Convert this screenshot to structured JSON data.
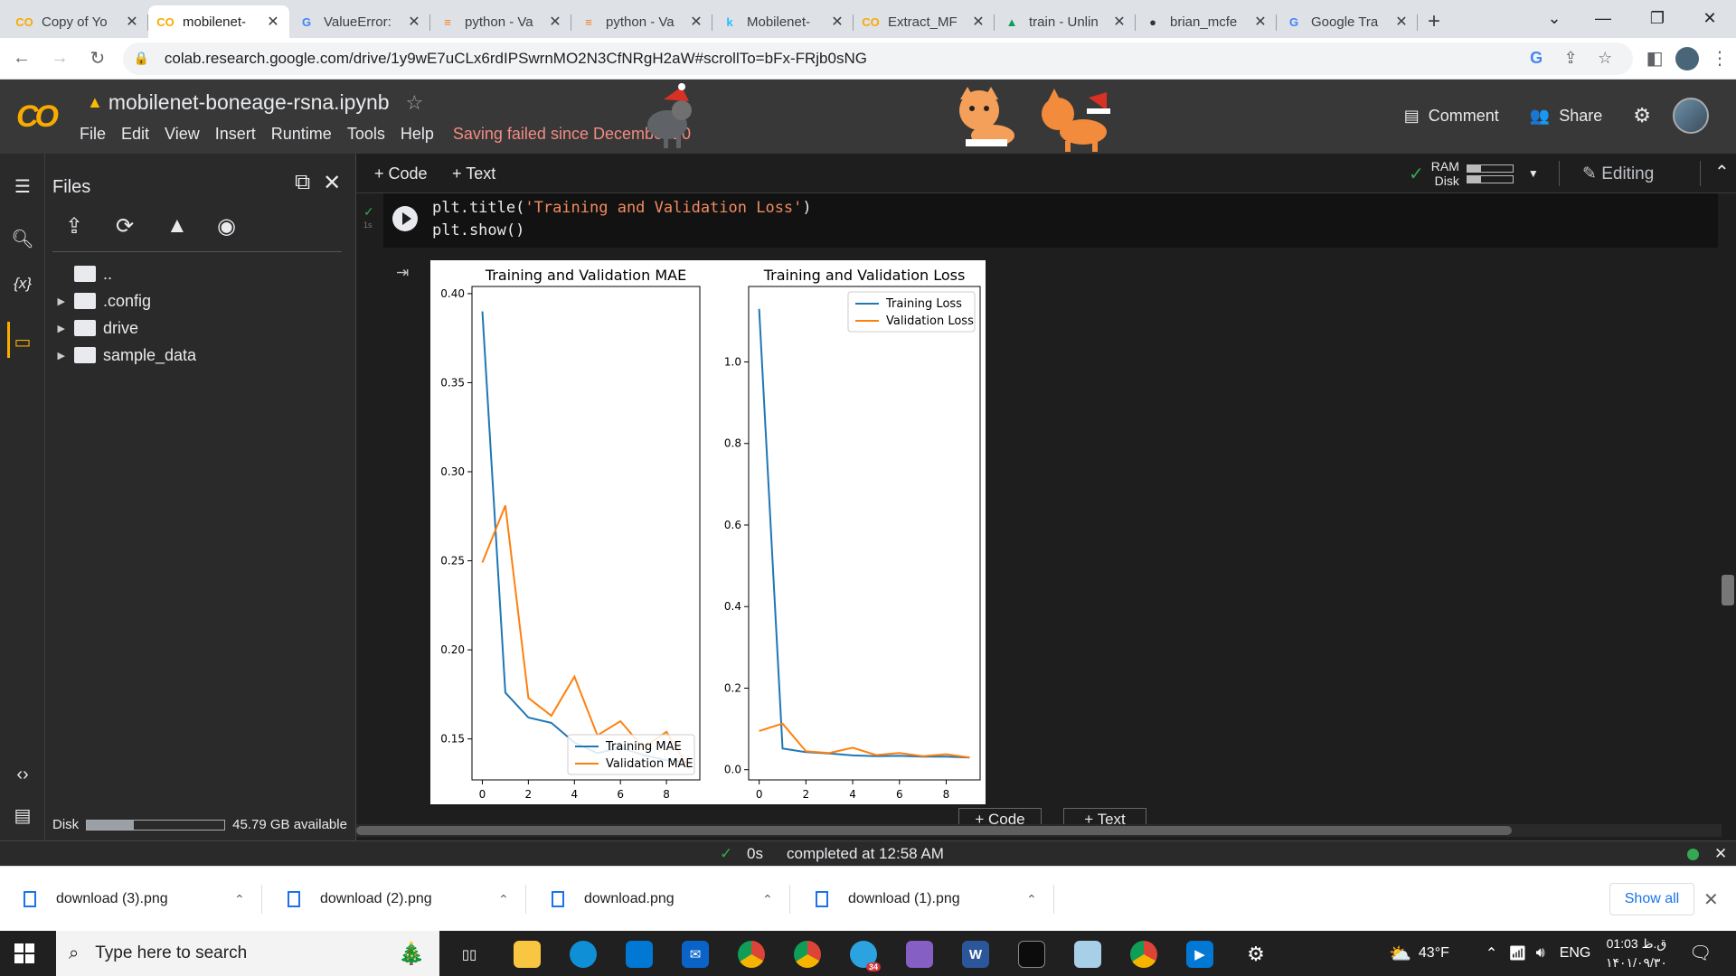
{
  "browser": {
    "tabs": [
      {
        "label": "Copy of Yo",
        "icon": "colab-icon",
        "color": "#f9ab00"
      },
      {
        "label": "mobilenet-",
        "icon": "colab-icon",
        "color": "#f9ab00",
        "active": true
      },
      {
        "label": "ValueError:",
        "icon": "google-icon",
        "color": "#4285f4"
      },
      {
        "label": "python - Va",
        "icon": "stackoverflow-icon",
        "color": "#f48024"
      },
      {
        "label": "python - Va",
        "icon": "stackoverflow-icon",
        "color": "#f48024"
      },
      {
        "label": "Mobilenet-",
        "icon": "kaggle-icon",
        "color": "#20beff"
      },
      {
        "label": "Extract_MF",
        "icon": "colab-icon",
        "color": "#f9ab00"
      },
      {
        "label": "train - Unlin",
        "icon": "drive-icon",
        "color": "#0f9d58"
      },
      {
        "label": "brian_mcfe",
        "icon": "github-icon",
        "color": "#333333"
      },
      {
        "label": "Google Tra",
        "icon": "translate-icon",
        "color": "#4285f4"
      }
    ],
    "url": "colab.research.google.com/drive/1y9wE7uCLx6rdIPSwrnMO2N3CfNRgH2aW#scrollTo=bFx-FRjb0sNG"
  },
  "colab": {
    "notebook_title": "mobilenet-boneage-rsna.ipynb",
    "menu": [
      "File",
      "Edit",
      "View",
      "Insert",
      "Runtime",
      "Tools",
      "Help"
    ],
    "save_warning": "Saving failed since December 20",
    "comment_label": "Comment",
    "share_label": "Share",
    "add_code_label": "+ Code",
    "add_text_label": "+ Text",
    "ram_label": "RAM",
    "disk_label": "Disk",
    "ram_fraction": 0.3,
    "disk_fraction": 0.3,
    "editing_label": "Editing"
  },
  "files_panel": {
    "title": "Files",
    "tree": [
      {
        "label": "..",
        "type": "parent"
      },
      {
        "label": ".config",
        "type": "folder"
      },
      {
        "label": "drive",
        "type": "folder"
      },
      {
        "label": "sample_data",
        "type": "folder"
      }
    ],
    "disk_label": "Disk",
    "disk_available": "45.79 GB available",
    "disk_fraction": 0.34
  },
  "cell": {
    "code_line1_pre": "plt.title(",
    "code_line1_str": "'Training and Validation Loss'",
    "code_line1_post": ")",
    "code_line2": "plt.show()",
    "exec_time": "1s"
  },
  "chart_data": [
    {
      "type": "line",
      "title": "Training and Validation MAE",
      "x": [
        0,
        1,
        2,
        3,
        4,
        5,
        6,
        7,
        8,
        9
      ],
      "xticks": [
        0,
        2,
        4,
        6,
        8
      ],
      "yticks": [
        0.15,
        0.2,
        0.25,
        0.3,
        0.35,
        0.4
      ],
      "ytick_labels": [
        "0.15",
        "0.20",
        "0.25",
        "0.30",
        "0.35",
        "0.40"
      ],
      "xlim": [
        -0.45,
        9.45
      ],
      "ylim": [
        0.127,
        0.404
      ],
      "legend": "lower-right",
      "series": [
        {
          "name": "Training MAE",
          "color": "#1f77b4",
          "values": [
            0.39,
            0.176,
            0.162,
            0.159,
            0.148,
            0.142,
            0.145,
            0.141,
            0.138,
            0.137
          ]
        },
        {
          "name": "Validation MAE",
          "color": "#ff7f0e",
          "values": [
            0.249,
            0.281,
            0.173,
            0.163,
            0.185,
            0.152,
            0.16,
            0.145,
            0.154,
            0.133
          ]
        }
      ]
    },
    {
      "type": "line",
      "title": "Training and Validation Loss",
      "x": [
        0,
        1,
        2,
        3,
        4,
        5,
        6,
        7,
        8,
        9
      ],
      "xticks": [
        0,
        2,
        4,
        6,
        8
      ],
      "yticks": [
        0.0,
        0.2,
        0.4,
        0.6,
        0.8,
        1.0
      ],
      "ytick_labels": [
        "0.0",
        "0.2",
        "0.4",
        "0.6",
        "0.8",
        "1.0"
      ],
      "xlim": [
        -0.45,
        9.45
      ],
      "ylim": [
        -0.025,
        1.185
      ],
      "legend": "upper-right",
      "series": [
        {
          "name": "Training Loss",
          "color": "#1f77b4",
          "values": [
            1.13,
            0.052,
            0.043,
            0.04,
            0.035,
            0.033,
            0.034,
            0.032,
            0.032,
            0.03
          ]
        },
        {
          "name": "Validation Loss",
          "color": "#ff7f0e",
          "values": [
            0.095,
            0.113,
            0.045,
            0.041,
            0.054,
            0.036,
            0.041,
            0.033,
            0.038,
            0.03
          ]
        }
      ]
    }
  ],
  "status": {
    "duration": "0s",
    "completed": "completed at 12:58 AM"
  },
  "downloads": [
    {
      "name": "download (3).png"
    },
    {
      "name": "download (2).png"
    },
    {
      "name": "download.png"
    },
    {
      "name": "download (1).png"
    }
  ],
  "show_all_label": "Show all",
  "taskbar": {
    "search_placeholder": "Type here to search",
    "weather": "43°F",
    "language": "ENG",
    "time": "01:03 ق.ظ",
    "date": "۱۴۰۱/۰۹/۳۰",
    "telegram_badge": "34"
  }
}
